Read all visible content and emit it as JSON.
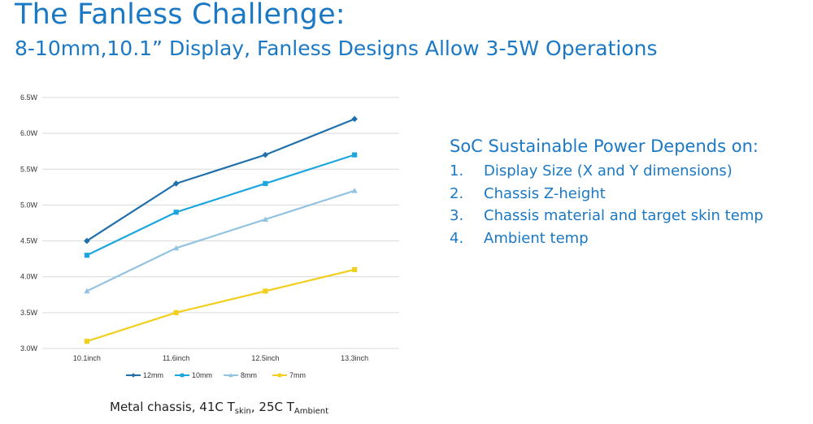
{
  "title": "The Fanless Challenge:",
  "subtitle": "8-10mm,10.1” Display, Fanless Designs Allow 3-5W Operations",
  "caption": {
    "prefix": "Metal chassis, 41C T",
    "sub1": "skin",
    "middle": ", 25C T",
    "sub2": "Ambient"
  },
  "factors": {
    "heading": "SoC Sustainable Power Depends on:",
    "items": [
      {
        "num": "1.",
        "text": "Display Size (X and Y dimensions)"
      },
      {
        "num": "2.",
        "text": "Chassis Z-height"
      },
      {
        "num": "3.",
        "text": "Chassis material and target skin temp"
      },
      {
        "num": "4.",
        "text": "Ambient temp"
      }
    ]
  },
  "colors": {
    "accent": "#1b78c4",
    "series_12mm": "#1f6fad",
    "series_10mm": "#1ca6df",
    "series_8mm": "#93c3e0",
    "series_7mm": "#f2cf1f"
  },
  "chart_data": {
    "type": "line",
    "categories": [
      "10.1inch",
      "11.6inch",
      "12.5inch",
      "13.3inch"
    ],
    "ylim": [
      3.0,
      6.5
    ],
    "yticks": [
      "3.0W",
      "3.5W",
      "4.0W",
      "4.5W",
      "5.0W",
      "5.5W",
      "6.0W",
      "6.5W"
    ],
    "grid": true,
    "legend_position": "bottom",
    "series": [
      {
        "name": "12mm",
        "values": [
          4.5,
          5.3,
          5.7,
          6.2
        ],
        "marker": "diamond",
        "color": "#1f6fad"
      },
      {
        "name": "10mm",
        "values": [
          4.3,
          4.9,
          5.3,
          5.7
        ],
        "marker": "square",
        "color": "#1ca6df"
      },
      {
        "name": "8mm",
        "values": [
          3.8,
          4.4,
          4.8,
          5.2
        ],
        "marker": "triangle",
        "color": "#93c3e0"
      },
      {
        "name": "7mm",
        "values": [
          3.1,
          3.5,
          3.8,
          4.1
        ],
        "marker": "square",
        "color": "#f2cf1f"
      }
    ]
  }
}
